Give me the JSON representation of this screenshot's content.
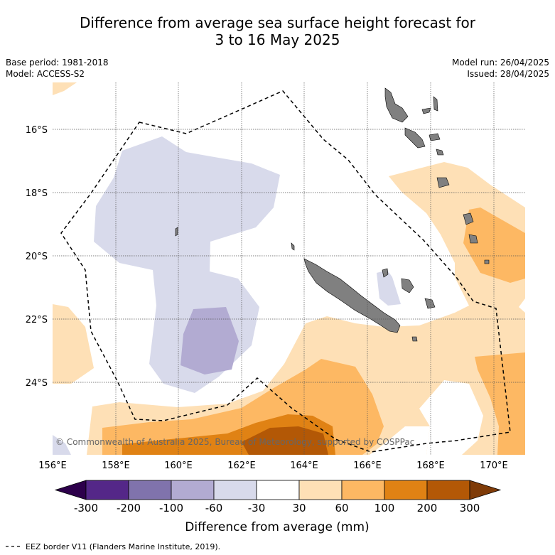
{
  "title": {
    "line1": "Difference from average sea surface height forecast for",
    "line2": "3 to 16 May 2025"
  },
  "info_left": {
    "base_period": "Base period: 1981-2018",
    "model": "Model: ACCESS-S2"
  },
  "info_right": {
    "model_run": "Model run: 26/04/2025",
    "issued": "Issued: 28/04/2025"
  },
  "map": {
    "lon_labels": [
      "156°E",
      "158°E",
      "160°E",
      "162°E",
      "164°E",
      "166°E",
      "168°E",
      "170°E"
    ],
    "lat_labels": [
      "16°S",
      "18°S",
      "20°S",
      "22°S",
      "24°S"
    ],
    "copyright": "© Commonwealth of Australia 2025, Bureau of Meteorology, supported by COSPPac",
    "land_color": "#808080"
  },
  "colorbar": {
    "tick_labels": [
      "-300",
      "-200",
      "-100",
      "-60",
      "-30",
      "30",
      "60",
      "100",
      "200",
      "300"
    ],
    "label": "Difference from average (mm)",
    "colors": [
      "#2d004b",
      "#542788",
      "#8073ac",
      "#b2abd2",
      "#d8daeb",
      "#ffffff",
      "#fee0b6",
      "#fdb863",
      "#e08214",
      "#b35806",
      "#7f3b08"
    ]
  },
  "legend": {
    "eez_text": "EEZ border V11 (Flanders Marine Institute, 2019)."
  }
}
